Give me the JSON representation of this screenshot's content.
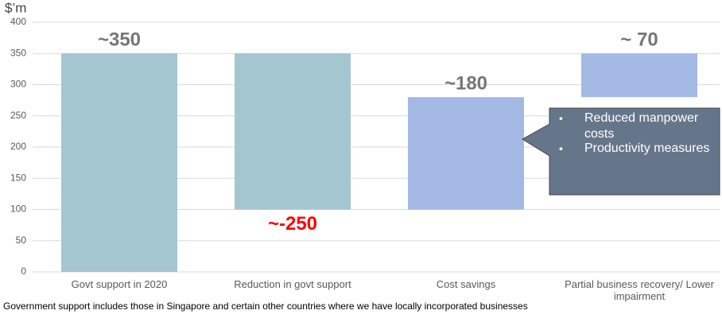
{
  "chart_data": {
    "type": "waterfall",
    "y_label": "$’m",
    "categories": [
      "Govt support in 2020",
      "Reduction in govt support",
      "Cost savings",
      "Partial business recovery/ Lower impairment"
    ],
    "values": [
      350,
      -250,
      180,
      70
    ],
    "value_labels": [
      "~350",
      "~-250",
      "~180",
      "~ 70"
    ],
    "colors": [
      "#a3c6d1",
      "#a3c6d1",
      "#a3b9e3",
      "#a3b9e3"
    ],
    "label_color": "#767676",
    "negative_label_color": "#ff0000",
    "ylim": [
      0,
      400
    ],
    "yticks": [
      0,
      50,
      100,
      150,
      200,
      250,
      300,
      350,
      400
    ],
    "grid": true,
    "annotations": [
      "Reduced manpower costs",
      "Productivity measures"
    ],
    "footnote": "Government support includes those in Singapore and certain other countries where we have locally incorporated businesses"
  }
}
